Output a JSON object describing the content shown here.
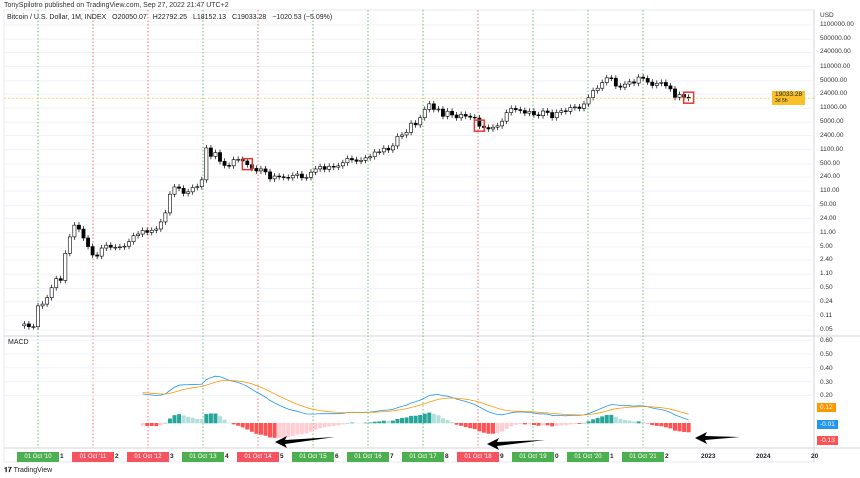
{
  "publisher": "TonySpilotro published on TradingView.com, Sep 27, 2022 21:47 UTC+2",
  "legend": {
    "symbol": "Bitcoin / U.S. Dollar, 1M, INDEX",
    "open": "O20050.07",
    "high": "H22792.25",
    "low": "L18152.13",
    "close": "C19033.28",
    "change": "−1020.53 (−5.09%)"
  },
  "price_axis": {
    "currency": "USD",
    "ticks": [
      "1100000.00",
      "500000.00",
      "240000.00",
      "110000.00",
      "50000.00",
      "24000.00",
      "11000.00",
      "5000.00",
      "2400.00",
      "1100.00",
      "500.00",
      "240.00",
      "110.00",
      "50.00",
      "24.00",
      "11.00",
      "5.00",
      "2.40",
      "1.10",
      "0.50",
      "0.24",
      "0.11",
      "0.05"
    ],
    "last_price": "19033.28",
    "countdown": "3d 5h"
  },
  "macd_axis": {
    "ticks": [
      "0.60",
      "0.50",
      "0.40",
      "0.30",
      "0.20"
    ],
    "signal_badge": "0.12",
    "macd_badge": "-0.01",
    "hist_badge": "-0.13"
  },
  "time_axis": {
    "markers": [
      {
        "label": "01 Oct '10",
        "num": "1",
        "color": "green"
      },
      {
        "label": "01 Oct '11",
        "num": "2",
        "color": "red"
      },
      {
        "label": "01 Oct '12",
        "num": "3",
        "color": "red"
      },
      {
        "label": "01 Oct '13",
        "num": "4",
        "color": "green"
      },
      {
        "label": "01 Oct '14",
        "num": "5",
        "color": "red"
      },
      {
        "label": "01 Oct '15",
        "num": "6",
        "color": "green"
      },
      {
        "label": "01 Oct '16",
        "num": "7",
        "color": "green"
      },
      {
        "label": "01 Oct '17",
        "num": "8",
        "color": "green"
      },
      {
        "label": "01 Oct '18",
        "num": "9",
        "color": "red"
      },
      {
        "label": "01 Oct '19",
        "num": "0",
        "color": "green"
      },
      {
        "label": "01 Oct '20",
        "num": "1",
        "color": "green"
      },
      {
        "label": "01 Oct '21",
        "num": "2",
        "color": "green"
      }
    ],
    "years": [
      "2023",
      "2024",
      "20"
    ]
  },
  "logo": "TradingView",
  "colors": {
    "green": "#4caf50",
    "red": "#f7525f",
    "macd": "#2196f3",
    "signal": "#ff9800",
    "hist_up": "#26a69a",
    "hist_up_weak": "#b2dfdb",
    "hist_down": "#ff5252",
    "hist_down_weak": "#ffcdd2",
    "last_price": "#f9c02c"
  },
  "chart_data": {
    "type": "candlestick",
    "scale": "log",
    "start": "2010-07",
    "interval": "1M",
    "closes": [
      0.07,
      0.06,
      0.06,
      0.19,
      0.21,
      0.3,
      0.52,
      0.86,
      0.78,
      3.5,
      8.7,
      16.7,
      13.4,
      8.2,
      5.1,
      3.2,
      3.0,
      4.7,
      5.5,
      4.9,
      4.9,
      5.0,
      5.2,
      6.7,
      9.3,
      10.2,
      12.4,
      11.2,
      12.6,
      13.5,
      20,
      33,
      93,
      139,
      129,
      97,
      106,
      135,
      141,
      206,
      1205,
      757,
      935,
      573,
      458,
      448,
      630,
      641,
      587,
      478,
      388,
      338,
      378,
      320,
      217,
      254,
      244,
      236,
      230,
      263,
      284,
      230,
      236,
      314,
      377,
      430,
      369,
      437,
      416,
      448,
      531,
      673,
      624,
      575,
      609,
      698,
      742,
      963,
      970,
      1190,
      1080,
      1350,
      2300,
      2480,
      2870,
      4760,
      4340,
      6450,
      10200,
      13900,
      10200,
      10400,
      6970,
      9240,
      7500,
      6400,
      7730,
      7030,
      6630,
      6370,
      4040,
      3740,
      3460,
      3810,
      4100,
      5320,
      8570,
      10800,
      10100,
      9600,
      8300,
      9150,
      7570,
      7200,
      9350,
      8600,
      6440,
      8660,
      9460,
      9140,
      11350,
      11680,
      10780,
      13800,
      19700,
      29000,
      33100,
      45200,
      58800,
      57700,
      37300,
      35000,
      41500,
      47100,
      43800,
      61300,
      57000,
      46300,
      38500,
      43200,
      45500,
      37700,
      31800,
      19900,
      23300,
      20050,
      19033
    ],
    "indicator": "MACD",
    "ylim": [
      0.05,
      1100000
    ]
  }
}
